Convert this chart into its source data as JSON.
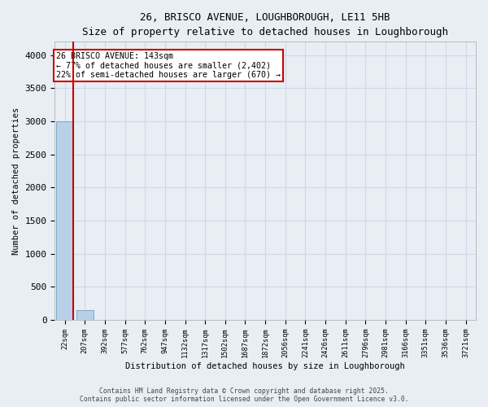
{
  "title_line1": "26, BRISCO AVENUE, LOUGHBOROUGH, LE11 5HB",
  "title_line2": "Size of property relative to detached houses in Loughborough",
  "xlabel": "Distribution of detached houses by size in Loughborough",
  "ylabel": "Number of detached properties",
  "x_labels": [
    "22sqm",
    "207sqm",
    "392sqm",
    "577sqm",
    "762sqm",
    "947sqm",
    "1132sqm",
    "1317sqm",
    "1502sqm",
    "1687sqm",
    "1872sqm",
    "2056sqm",
    "2241sqm",
    "2426sqm",
    "2611sqm",
    "2796sqm",
    "2981sqm",
    "3166sqm",
    "3351sqm",
    "3536sqm",
    "3721sqm"
  ],
  "bar_heights": [
    3000,
    150,
    5,
    2,
    1,
    1,
    0,
    0,
    0,
    0,
    0,
    0,
    0,
    0,
    0,
    0,
    0,
    0,
    0,
    0,
    0
  ],
  "bar_color": "#b8d0e8",
  "bar_edge_color": "#7aaac8",
  "vline_color": "#cc0000",
  "annotation_text": "26 BRISCO AVENUE: 143sqm\n← 77% of detached houses are smaller (2,402)\n22% of semi-detached houses are larger (670) →",
  "annotation_box_color": "#ffffff",
  "annotation_box_edge": "#cc0000",
  "ylim": [
    0,
    4200
  ],
  "yticks": [
    0,
    500,
    1000,
    1500,
    2000,
    2500,
    3000,
    3500,
    4000
  ],
  "bg_color": "#e8eef4",
  "grid_color": "#d0d8e4",
  "footer_line1": "Contains HM Land Registry data © Crown copyright and database right 2025.",
  "footer_line2": "Contains public sector information licensed under the Open Government Licence v3.0."
}
